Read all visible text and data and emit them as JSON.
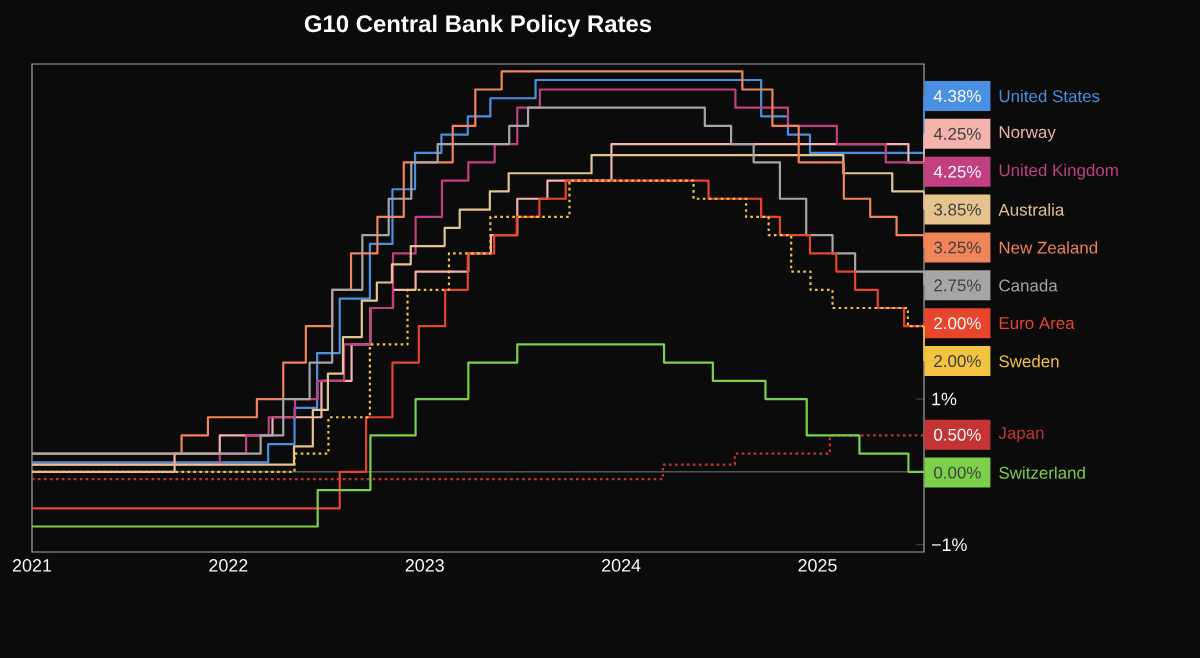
{
  "chart_data": {
    "type": "step",
    "title": "G10 Central Bank Policy Rates",
    "xlim": [
      "2021-01-01",
      "2025-07-18"
    ],
    "xticks": [
      "2021",
      "2022",
      "2023",
      "2024",
      "2025"
    ],
    "ylim": [
      -1.1,
      5.6
    ],
    "legend": "right",
    "yticks": [
      {
        "value": 1,
        "label": "1%"
      },
      {
        "value": -1,
        "label": "−1%"
      }
    ],
    "ref_lines": [
      {
        "axis": "y",
        "value": 0,
        "color": "#7a7a7a"
      }
    ],
    "series": [
      {
        "name": "United States",
        "color": "#4a90e2",
        "x": [
          "2021-01-01",
          "2022-03-16",
          "2022-05-04",
          "2022-06-15",
          "2022-07-27",
          "2022-09-21",
          "2022-11-02",
          "2022-12-14",
          "2023-02-01",
          "2023-03-22",
          "2023-05-03",
          "2023-07-26",
          "2024-09-18",
          "2024-11-07",
          "2024-12-18",
          "2025-07-18"
        ],
        "values": [
          0.13,
          0.38,
          0.88,
          1.63,
          2.38,
          3.13,
          3.88,
          4.38,
          4.63,
          4.88,
          5.13,
          5.38,
          4.88,
          4.63,
          4.38,
          4.38
        ],
        "value_labels": [
          null,
          null,
          null,
          null,
          null,
          null,
          null,
          null,
          null,
          null,
          null,
          null,
          null,
          null,
          null,
          "4.38%"
        ]
      },
      {
        "name": "Norway",
        "color": "#f4b4ac",
        "x": [
          "2021-01-01",
          "2021-09-23",
          "2021-12-16",
          "2022-03-24",
          "2022-06-23",
          "2022-08-18",
          "2022-09-22",
          "2022-11-03",
          "2022-12-15",
          "2023-03-23",
          "2023-05-04",
          "2023-06-22",
          "2023-08-17",
          "2023-12-14",
          "2025-06-19",
          "2025-07-18"
        ],
        "values": [
          0,
          0.25,
          0.5,
          0.75,
          1.25,
          1.75,
          2.25,
          2.5,
          2.75,
          3,
          3.25,
          3.75,
          4,
          4.5,
          4.25,
          4.25
        ],
        "value_labels": [
          null,
          null,
          null,
          null,
          null,
          null,
          null,
          null,
          null,
          null,
          null,
          null,
          null,
          null,
          null,
          "4.25%"
        ]
      },
      {
        "name": "United Kingdom",
        "color": "#c2407f",
        "x": [
          "2021-01-01",
          "2021-12-16",
          "2022-02-03",
          "2022-03-17",
          "2022-05-05",
          "2022-06-16",
          "2022-08-04",
          "2022-09-22",
          "2022-11-03",
          "2022-12-15",
          "2023-02-02",
          "2023-03-23",
          "2023-05-11",
          "2023-06-22",
          "2023-08-03",
          "2024-08-01",
          "2024-11-07",
          "2025-02-06",
          "2025-05-08",
          "2025-07-18"
        ],
        "values": [
          0.1,
          0.25,
          0.5,
          0.75,
          1,
          1.25,
          1.75,
          2.25,
          3,
          3.5,
          4,
          4.25,
          4.5,
          5,
          5.25,
          5,
          4.75,
          4.5,
          4.25,
          4.25
        ],
        "value_labels": [
          null,
          null,
          null,
          null,
          null,
          null,
          null,
          null,
          null,
          null,
          null,
          null,
          null,
          null,
          null,
          null,
          null,
          null,
          null,
          "4.25%"
        ]
      },
      {
        "name": "Australia",
        "color": "#e6c48e",
        "x": [
          "2021-01-01",
          "2022-05-03",
          "2022-06-07",
          "2022-07-05",
          "2022-08-02",
          "2022-09-06",
          "2022-10-04",
          "2022-11-01",
          "2022-12-06",
          "2023-02-07",
          "2023-03-07",
          "2023-05-02",
          "2023-06-06",
          "2023-11-07",
          "2025-02-18",
          "2025-05-20",
          "2025-07-18"
        ],
        "values": [
          0.1,
          0.35,
          0.85,
          1.35,
          1.85,
          2.35,
          2.6,
          2.85,
          3.1,
          3.35,
          3.6,
          3.85,
          4.1,
          4.35,
          4.1,
          3.85,
          3.85
        ],
        "value_labels": [
          null,
          null,
          null,
          null,
          null,
          null,
          null,
          null,
          null,
          null,
          null,
          null,
          null,
          null,
          null,
          null,
          "3.85%"
        ]
      },
      {
        "name": "New Zealand",
        "color": "#f2845a",
        "x": [
          "2021-01-01",
          "2021-10-06",
          "2021-11-24",
          "2022-02-23",
          "2022-04-13",
          "2022-05-25",
          "2022-07-13",
          "2022-08-17",
          "2022-10-05",
          "2022-11-23",
          "2023-02-22",
          "2023-04-05",
          "2023-05-24",
          "2024-08-14",
          "2024-10-09",
          "2024-11-27",
          "2025-02-19",
          "2025-04-09",
          "2025-05-28",
          "2025-07-18"
        ],
        "values": [
          0.25,
          0.5,
          0.75,
          1,
          1.5,
          2,
          2.5,
          3,
          3.5,
          4.25,
          4.75,
          5.25,
          5.5,
          5.25,
          4.75,
          4.25,
          3.75,
          3.5,
          3.25,
          3.25
        ],
        "value_labels": [
          null,
          null,
          null,
          null,
          null,
          null,
          null,
          null,
          null,
          null,
          null,
          null,
          null,
          null,
          null,
          null,
          null,
          null,
          null,
          "3.25%"
        ]
      },
      {
        "name": "Canada",
        "color": "#a6a6a6",
        "x": [
          "2021-01-01",
          "2022-03-02",
          "2022-04-13",
          "2022-06-01",
          "2022-07-13",
          "2022-09-07",
          "2022-10-26",
          "2022-12-07",
          "2023-01-25",
          "2023-06-07",
          "2023-07-12",
          "2024-06-05",
          "2024-07-24",
          "2024-09-04",
          "2024-10-23",
          "2024-12-11",
          "2025-01-29",
          "2025-03-12",
          "2025-07-18"
        ],
        "values": [
          0.25,
          0.5,
          1,
          1.5,
          2.5,
          3.25,
          3.75,
          4.25,
          4.5,
          4.75,
          5,
          4.75,
          4.5,
          4.25,
          3.75,
          3.25,
          3,
          2.75,
          2.75
        ],
        "value_labels": [
          null,
          null,
          null,
          null,
          null,
          null,
          null,
          null,
          null,
          null,
          null,
          null,
          null,
          null,
          null,
          null,
          null,
          null,
          "2.75%"
        ]
      },
      {
        "name": "Euro Area",
        "color": "#e8452c",
        "x": [
          "2021-01-01",
          "2022-07-27",
          "2022-09-14",
          "2022-11-02",
          "2022-12-21",
          "2023-02-08",
          "2023-03-22",
          "2023-05-10",
          "2023-06-21",
          "2023-08-02",
          "2023-09-20",
          "2024-06-12",
          "2024-09-18",
          "2024-10-23",
          "2024-12-18",
          "2025-02-05",
          "2025-03-12",
          "2025-04-23",
          "2025-06-11",
          "2025-07-18"
        ],
        "values": [
          -0.5,
          0,
          0.75,
          1.5,
          2,
          2.5,
          3,
          3.25,
          3.5,
          3.75,
          4,
          3.75,
          3.5,
          3.25,
          3,
          2.75,
          2.5,
          2.25,
          2,
          2
        ],
        "value_labels": [
          null,
          null,
          null,
          null,
          null,
          null,
          null,
          null,
          null,
          null,
          null,
          null,
          null,
          null,
          null,
          null,
          null,
          null,
          null,
          "2.00%"
        ]
      },
      {
        "name": "Sweden",
        "color": "#f2c442",
        "line_style": "dotted",
        "x": [
          "2021-01-01",
          "2022-05-04",
          "2022-07-06",
          "2022-09-21",
          "2022-11-30",
          "2023-02-15",
          "2023-05-03",
          "2023-09-27",
          "2024-05-15",
          "2024-08-21",
          "2024-10-02",
          "2024-11-13",
          "2024-12-19",
          "2025-01-29",
          "2025-06-18",
          "2025-07-18"
        ],
        "values": [
          0,
          0.25,
          0.75,
          1.75,
          2.5,
          3,
          3.5,
          4,
          3.75,
          3.5,
          3.25,
          2.75,
          2.5,
          2.25,
          2,
          2
        ],
        "value_labels": [
          null,
          null,
          null,
          null,
          null,
          null,
          null,
          null,
          null,
          null,
          null,
          null,
          null,
          null,
          null,
          "2.00%"
        ]
      },
      {
        "name": "Japan",
        "color": "#c43434",
        "line_style": "dotted",
        "x": [
          "2021-01-01",
          "2024-03-19",
          "2024-07-31",
          "2025-01-24",
          "2025-07-18"
        ],
        "values": [
          -0.1,
          0.1,
          0.25,
          0.5,
          0.5
        ],
        "value_labels": [
          null,
          null,
          null,
          null,
          "0.50%"
        ]
      },
      {
        "name": "Switzerland",
        "color": "#7cd04a",
        "x": [
          "2021-01-01",
          "2022-06-16",
          "2022-09-22",
          "2022-12-15",
          "2023-03-23",
          "2023-06-22",
          "2024-03-21",
          "2024-06-20",
          "2024-09-26",
          "2024-12-12",
          "2025-03-20",
          "2025-06-19",
          "2025-07-18"
        ],
        "values": [
          -0.75,
          -0.25,
          0.5,
          1,
          1.5,
          1.75,
          1.5,
          1.25,
          1,
          0.5,
          0.25,
          0,
          0
        ],
        "value_labels": [
          null,
          null,
          null,
          null,
          null,
          null,
          null,
          null,
          null,
          null,
          null,
          null,
          "0.00%"
        ]
      }
    ]
  }
}
